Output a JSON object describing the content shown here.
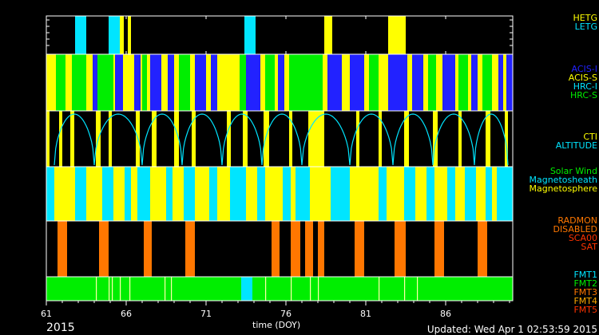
{
  "year_label": "2015",
  "updated": "Updated: Wed Apr  1 02:53:59 2015",
  "chart_data": {
    "type": "timeline",
    "xlabel": "time (DOY)",
    "xlim": [
      61,
      90.2
    ],
    "xticks": [
      61,
      66,
      71,
      76,
      81,
      86
    ],
    "panels": [
      {
        "id": "grating",
        "legend": [
          {
            "label": "HETG",
            "color": "#ffff00"
          },
          {
            "label": "LETG",
            "color": "#00e5ff"
          }
        ],
        "background": "#000000",
        "segments": [
          {
            "start": 62.8,
            "end": 63.5,
            "state": "LETG"
          },
          {
            "start": 64.9,
            "end": 65.6,
            "state": "LETG"
          },
          {
            "start": 65.6,
            "end": 65.85,
            "state": "HETG"
          },
          {
            "start": 66.1,
            "end": 66.3,
            "state": "HETG"
          },
          {
            "start": 73.4,
            "end": 74.1,
            "state": "LETG"
          },
          {
            "start": 78.4,
            "end": 78.9,
            "state": "HETG"
          },
          {
            "start": 82.4,
            "end": 83.5,
            "state": "HETG"
          }
        ]
      },
      {
        "id": "instrument",
        "legend": [
          {
            "label": "ACIS-I",
            "color": "#2222ff"
          },
          {
            "label": "ACIS-S",
            "color": "#ffff00"
          },
          {
            "label": "HRC-I",
            "color": "#00e5ff"
          },
          {
            "label": "HRC-S",
            "color": "#00ee00"
          }
        ],
        "background": "#ffff00",
        "segments": [
          {
            "start": 61.6,
            "end": 62.2,
            "state": "HRC-S"
          },
          {
            "start": 62.6,
            "end": 63.5,
            "state": "HRC-S"
          },
          {
            "start": 63.9,
            "end": 64.2,
            "state": "ACIS-I"
          },
          {
            "start": 64.2,
            "end": 65.2,
            "state": "HRC-S"
          },
          {
            "start": 65.3,
            "end": 65.8,
            "state": "ACIS-I"
          },
          {
            "start": 66.5,
            "end": 66.9,
            "state": "ACIS-I"
          },
          {
            "start": 67.0,
            "end": 67.3,
            "state": "HRC-S"
          },
          {
            "start": 67.5,
            "end": 68.2,
            "state": "ACIS-I"
          },
          {
            "start": 68.6,
            "end": 69.0,
            "state": "ACIS-I"
          },
          {
            "start": 69.3,
            "end": 70.0,
            "state": "HRC-S"
          },
          {
            "start": 70.3,
            "end": 71.0,
            "state": "ACIS-I"
          },
          {
            "start": 71.3,
            "end": 71.7,
            "state": "ACIS-I"
          },
          {
            "start": 73.1,
            "end": 73.5,
            "state": "HRC-S"
          },
          {
            "start": 73.5,
            "end": 74.4,
            "state": "ACIS-I"
          },
          {
            "start": 74.7,
            "end": 75.3,
            "state": "HRC-S"
          },
          {
            "start": 75.5,
            "end": 75.9,
            "state": "ACIS-I"
          },
          {
            "start": 76.2,
            "end": 78.3,
            "state": "HRC-S"
          },
          {
            "start": 78.6,
            "end": 79.5,
            "state": "ACIS-I"
          },
          {
            "start": 80.0,
            "end": 80.9,
            "state": "ACIS-I"
          },
          {
            "start": 81.2,
            "end": 81.8,
            "state": "HRC-S"
          },
          {
            "start": 82.4,
            "end": 83.6,
            "state": "ACIS-I"
          },
          {
            "start": 83.9,
            "end": 84.6,
            "state": "ACIS-I"
          },
          {
            "start": 84.9,
            "end": 85.4,
            "state": "HRC-S"
          },
          {
            "start": 85.8,
            "end": 86.6,
            "state": "ACIS-I"
          },
          {
            "start": 86.8,
            "end": 87.4,
            "state": "HRC-S"
          },
          {
            "start": 87.6,
            "end": 88.0,
            "state": "ACIS-I"
          },
          {
            "start": 88.3,
            "end": 88.9,
            "state": "HRC-S"
          },
          {
            "start": 89.3,
            "end": 89.6,
            "state": "ACIS-I"
          },
          {
            "start": 89.8,
            "end": 90.2,
            "state": "ACIS-I"
          }
        ]
      },
      {
        "id": "altitude",
        "legend": [
          {
            "label": "CTI",
            "color": "#ffff00"
          },
          {
            "label": "ALTITUDE",
            "color": "#00e5ff"
          }
        ],
        "background": "#000000",
        "cti_segments": [
          {
            "start": 61.0,
            "end": 61.2
          },
          {
            "start": 61.8,
            "end": 62.0
          },
          {
            "start": 62.5,
            "end": 62.75
          },
          {
            "start": 64.1,
            "end": 64.4
          },
          {
            "start": 64.9,
            "end": 65.1
          },
          {
            "start": 66.6,
            "end": 66.85
          },
          {
            "start": 67.6,
            "end": 67.9
          },
          {
            "start": 69.0,
            "end": 69.3
          },
          {
            "start": 70.1,
            "end": 70.35
          },
          {
            "start": 72.3,
            "end": 72.55
          },
          {
            "start": 73.3,
            "end": 73.6
          },
          {
            "start": 74.6,
            "end": 74.95
          },
          {
            "start": 76.2,
            "end": 76.4
          },
          {
            "start": 77.4,
            "end": 78.4
          },
          {
            "start": 80.4,
            "end": 80.6
          },
          {
            "start": 81.8,
            "end": 82.0
          },
          {
            "start": 83.4,
            "end": 83.7
          },
          {
            "start": 85.2,
            "end": 85.5
          },
          {
            "start": 86.8,
            "end": 87.0
          },
          {
            "start": 88.5,
            "end": 88.8
          },
          {
            "start": 89.7,
            "end": 89.9
          }
        ],
        "orbit_minima": [
          61.5,
          64.0,
          67.0,
          69.5,
          72.0,
          74.5,
          77.0,
          80.0,
          82.7,
          85.2,
          87.8,
          89.9
        ]
      },
      {
        "id": "environment",
        "legend": [
          {
            "label": "Solar Wind",
            "color": "#00ee00"
          },
          {
            "label": "Magnetosheath",
            "color": "#00e5ff"
          },
          {
            "label": "Magnetosphere",
            "color": "#ffff00"
          }
        ],
        "background": "#ffff00",
        "segments": [
          {
            "start": 61.0,
            "end": 61.5,
            "state": "Magnetosheath"
          },
          {
            "start": 62.8,
            "end": 63.5,
            "state": "Magnetosheath"
          },
          {
            "start": 64.5,
            "end": 65.2,
            "state": "Magnetosheath"
          },
          {
            "start": 65.9,
            "end": 66.3,
            "state": "Magnetosheath"
          },
          {
            "start": 66.7,
            "end": 67.5,
            "state": "Magnetosheath"
          },
          {
            "start": 68.5,
            "end": 68.9,
            "state": "Magnetosheath"
          },
          {
            "start": 69.6,
            "end": 70.3,
            "state": "Magnetosheath"
          },
          {
            "start": 71.2,
            "end": 71.7,
            "state": "Magnetosheath"
          },
          {
            "start": 72.5,
            "end": 73.5,
            "state": "Magnetosheath"
          },
          {
            "start": 74.2,
            "end": 74.7,
            "state": "Magnetosheath"
          },
          {
            "start": 75.8,
            "end": 76.3,
            "state": "Magnetosheath"
          },
          {
            "start": 76.6,
            "end": 77.5,
            "state": "Magnetosheath"
          },
          {
            "start": 78.8,
            "end": 80.0,
            "state": "Magnetosheath"
          },
          {
            "start": 81.8,
            "end": 82.3,
            "state": "Magnetosheath"
          },
          {
            "start": 83.4,
            "end": 84.1,
            "state": "Magnetosheath"
          },
          {
            "start": 84.8,
            "end": 85.3,
            "state": "Magnetosheath"
          },
          {
            "start": 86.1,
            "end": 86.6,
            "state": "Magnetosheath"
          },
          {
            "start": 87.2,
            "end": 87.9,
            "state": "Magnetosheath"
          },
          {
            "start": 88.5,
            "end": 88.9,
            "state": "Magnetosheath"
          },
          {
            "start": 89.2,
            "end": 90.2,
            "state": "Magnetosheath"
          }
        ]
      },
      {
        "id": "radiation",
        "legend": [
          {
            "label": "RADMON",
            "color": "#ff7700"
          },
          {
            "label": "DISABLED",
            "color": "#ff7700"
          },
          {
            "label": "SCA00",
            "color": "#ff3300"
          },
          {
            "label": "SAT",
            "color": "#ff3300"
          }
        ],
        "background": "#000000",
        "segments": [
          {
            "start": 61.7,
            "end": 62.3,
            "state": "DISABLED"
          },
          {
            "start": 64.3,
            "end": 64.9,
            "state": "DISABLED"
          },
          {
            "start": 67.1,
            "end": 67.6,
            "state": "DISABLED"
          },
          {
            "start": 69.7,
            "end": 70.3,
            "state": "DISABLED"
          },
          {
            "start": 75.1,
            "end": 75.6,
            "state": "DISABLED"
          },
          {
            "start": 76.3,
            "end": 76.9,
            "state": "DISABLED"
          },
          {
            "start": 77.2,
            "end": 77.7,
            "state": "DISABLED"
          },
          {
            "start": 78.0,
            "end": 78.4,
            "state": "DISABLED"
          },
          {
            "start": 80.3,
            "end": 80.9,
            "state": "DISABLED"
          },
          {
            "start": 82.8,
            "end": 83.5,
            "state": "DISABLED"
          },
          {
            "start": 85.3,
            "end": 85.9,
            "state": "DISABLED"
          },
          {
            "start": 88.0,
            "end": 88.6,
            "state": "DISABLED"
          }
        ]
      },
      {
        "id": "format",
        "legend": [
          {
            "label": "FMT1",
            "color": "#00e5ff"
          },
          {
            "label": "FMT2",
            "color": "#00ee00"
          },
          {
            "label": "FMT3",
            "color": "#ff7700"
          },
          {
            "label": "FMT4",
            "color": "#ffaa00"
          },
          {
            "label": "FMT5",
            "color": "#ff3300"
          }
        ],
        "background": "#00ee00",
        "segments": [
          {
            "start": 73.2,
            "end": 73.9,
            "state": "FMT1"
          }
        ],
        "ticks": [
          64.1,
          64.9,
          65.1,
          65.6,
          66.2,
          68.4,
          68.8,
          74.7,
          76.3,
          77.5,
          78.0,
          81.8,
          83.4,
          84.2
        ]
      }
    ]
  }
}
